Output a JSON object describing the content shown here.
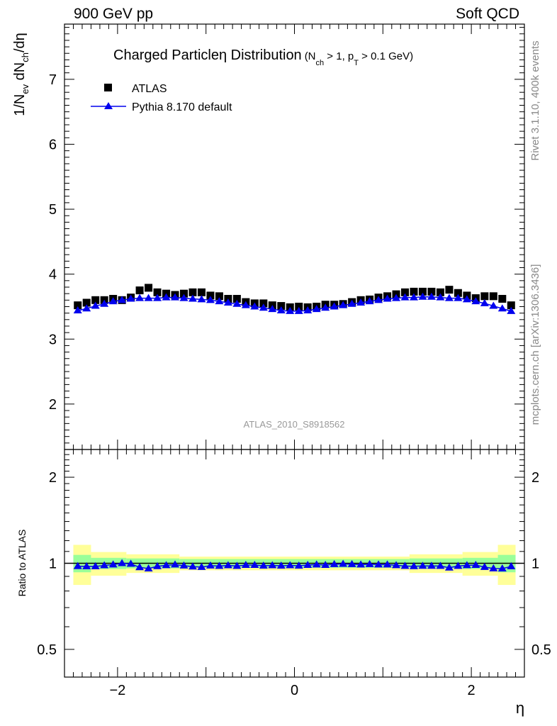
{
  "header": {
    "left": "900 GeV pp",
    "right": "Soft QCD"
  },
  "side_text": {
    "rivet": "Rivet 3.1.10,  400k events",
    "mcplots": "mcplots.cern.ch [arXiv:1306.3436]"
  },
  "watermark": "ATLAS_2010_S8918562",
  "chart_data": [
    {
      "type": "scatter",
      "title": {
        "main": "Charged Particleη Distribution",
        "cut_open": "(N",
        "cut_sub1": "ch",
        "cut_mid": " > 1, p",
        "cut_sub2": "T",
        "cut_close": " > 0.1 GeV)"
      },
      "ylabel": {
        "p1": "1/N",
        "s1": "ev",
        "p2": " dN",
        "s2": "ch",
        "p3": "/dη"
      },
      "xlim": [
        -2.6,
        2.6
      ],
      "ylim": [
        1.3,
        7.85
      ],
      "y_ticks": [
        2,
        3,
        4,
        5,
        6,
        7
      ],
      "legend_position": "top-left",
      "x": [
        -2.45,
        -2.35,
        -2.25,
        -2.15,
        -2.05,
        -1.95,
        -1.85,
        -1.75,
        -1.65,
        -1.55,
        -1.45,
        -1.35,
        -1.25,
        -1.15,
        -1.05,
        -0.95,
        -0.85,
        -0.75,
        -0.65,
        -0.55,
        -0.45,
        -0.35,
        -0.25,
        -0.15,
        -0.05,
        0.05,
        0.15,
        0.25,
        0.35,
        0.45,
        0.55,
        0.65,
        0.75,
        0.85,
        0.95,
        1.05,
        1.15,
        1.25,
        1.35,
        1.45,
        1.55,
        1.65,
        1.75,
        1.85,
        1.95,
        2.05,
        2.15,
        2.25,
        2.35,
        2.45
      ],
      "series": [
        {
          "name": "ATLAS",
          "marker": "square",
          "color": "#000000",
          "values": [
            3.52,
            3.56,
            3.6,
            3.6,
            3.62,
            3.6,
            3.64,
            3.75,
            3.79,
            3.72,
            3.7,
            3.68,
            3.7,
            3.72,
            3.72,
            3.67,
            3.66,
            3.62,
            3.62,
            3.57,
            3.55,
            3.55,
            3.52,
            3.51,
            3.49,
            3.5,
            3.49,
            3.5,
            3.53,
            3.53,
            3.54,
            3.57,
            3.6,
            3.61,
            3.64,
            3.66,
            3.69,
            3.72,
            3.73,
            3.73,
            3.73,
            3.72,
            3.76,
            3.71,
            3.67,
            3.63,
            3.66,
            3.66,
            3.62,
            3.52
          ]
        },
        {
          "name": "Pythia 8.170 default",
          "marker": "triangle",
          "color": "#0000ee",
          "values": [
            3.44,
            3.47,
            3.51,
            3.54,
            3.58,
            3.6,
            3.62,
            3.63,
            3.63,
            3.63,
            3.64,
            3.64,
            3.63,
            3.62,
            3.61,
            3.6,
            3.58,
            3.56,
            3.54,
            3.52,
            3.5,
            3.48,
            3.46,
            3.44,
            3.43,
            3.43,
            3.44,
            3.46,
            3.48,
            3.5,
            3.52,
            3.54,
            3.56,
            3.58,
            3.6,
            3.62,
            3.63,
            3.64,
            3.64,
            3.65,
            3.65,
            3.64,
            3.63,
            3.63,
            3.61,
            3.58,
            3.55,
            3.51,
            3.47,
            3.43
          ]
        }
      ]
    },
    {
      "type": "scatter",
      "ylabel": "Ratio to ATLAS",
      "xlabel": "η",
      "xlim": [
        -2.6,
        2.6
      ],
      "ylim": [
        0.4,
        2.5
      ],
      "log_y": true,
      "y_ticks": [
        0.5,
        1,
        2
      ],
      "y_tick_labels": [
        "0.5",
        "1",
        "2"
      ],
      "x_ticks": [
        -2,
        0,
        2
      ],
      "x_tick_labels": [
        "−2",
        "0",
        "2"
      ],
      "reference_line": 1,
      "band_colors": {
        "inner": "#99ff99",
        "outer": "#ffff99"
      },
      "bands": [
        {
          "x0": -2.5,
          "x1": -2.3,
          "inner": 0.07,
          "outer": 0.16
        },
        {
          "x0": -2.3,
          "x1": -1.9,
          "inner": 0.045,
          "outer": 0.095
        },
        {
          "x0": -1.9,
          "x1": -1.3,
          "inner": 0.04,
          "outer": 0.075
        },
        {
          "x0": -1.3,
          "x1": 1.3,
          "inner": 0.035,
          "outer": 0.055
        },
        {
          "x0": 1.3,
          "x1": 1.9,
          "inner": 0.04,
          "outer": 0.075
        },
        {
          "x0": 1.9,
          "x1": 2.3,
          "inner": 0.045,
          "outer": 0.095
        },
        {
          "x0": 2.3,
          "x1": 2.5,
          "inner": 0.07,
          "outer": 0.16
        }
      ],
      "series": [
        {
          "name": "Pythia 8.170 default",
          "marker": "triangle",
          "color": "#0000ee",
          "values": [
            0.977,
            0.975,
            0.975,
            0.983,
            0.989,
            1.0,
            0.995,
            0.968,
            0.958,
            0.976,
            0.984,
            0.989,
            0.981,
            0.973,
            0.97,
            0.981,
            0.978,
            0.983,
            0.978,
            0.986,
            0.986,
            0.98,
            0.983,
            0.98,
            0.983,
            0.98,
            0.986,
            0.989,
            0.986,
            0.992,
            0.994,
            0.992,
            0.989,
            0.992,
            0.989,
            0.989,
            0.984,
            0.978,
            0.976,
            0.979,
            0.979,
            0.978,
            0.965,
            0.978,
            0.984,
            0.986,
            0.97,
            0.959,
            0.958,
            0.975
          ]
        }
      ]
    }
  ]
}
